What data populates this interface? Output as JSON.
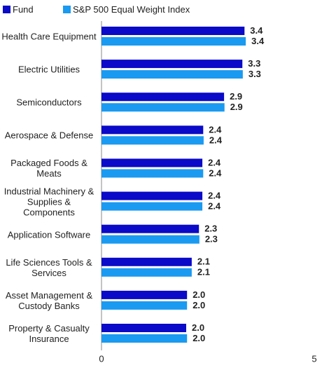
{
  "chart_data": {
    "type": "bar",
    "orientation": "horizontal",
    "categories": [
      "Health Care Equipment",
      "Electric Utilities",
      "Semiconductors",
      "Aerospace & Defense",
      "Packaged Foods & Meats",
      "Industrial Machinery & Supplies & Components",
      "Application Software",
      "Life Sciences Tools & Services",
      "Asset Management & Custody Banks",
      "Property & Casualty Insurance"
    ],
    "series": [
      {
        "name": "Fund",
        "color": "#0a0ac8",
        "values": [
          3.36,
          3.31,
          2.88,
          2.39,
          2.37,
          2.37,
          2.29,
          2.12,
          2.01,
          1.99
        ],
        "value_labels": [
          "3.4",
          "3.3",
          "2.9",
          "2.4",
          "2.4",
          "2.4",
          "2.3",
          "2.1",
          "2.0",
          "2.0"
        ]
      },
      {
        "name": "S&P 500 Equal Weight Index",
        "color": "#1a9af0",
        "values": [
          3.39,
          3.32,
          2.89,
          2.4,
          2.39,
          2.37,
          2.3,
          2.12,
          2.01,
          2.01
        ],
        "value_labels": [
          "3.4",
          "3.3",
          "2.9",
          "2.4",
          "2.4",
          "2.4",
          "2.3",
          "2.1",
          "2.0",
          "2.0"
        ]
      }
    ],
    "xlim": [
      0,
      5
    ],
    "xticks": [
      0,
      5
    ],
    "legend": "top-left"
  }
}
